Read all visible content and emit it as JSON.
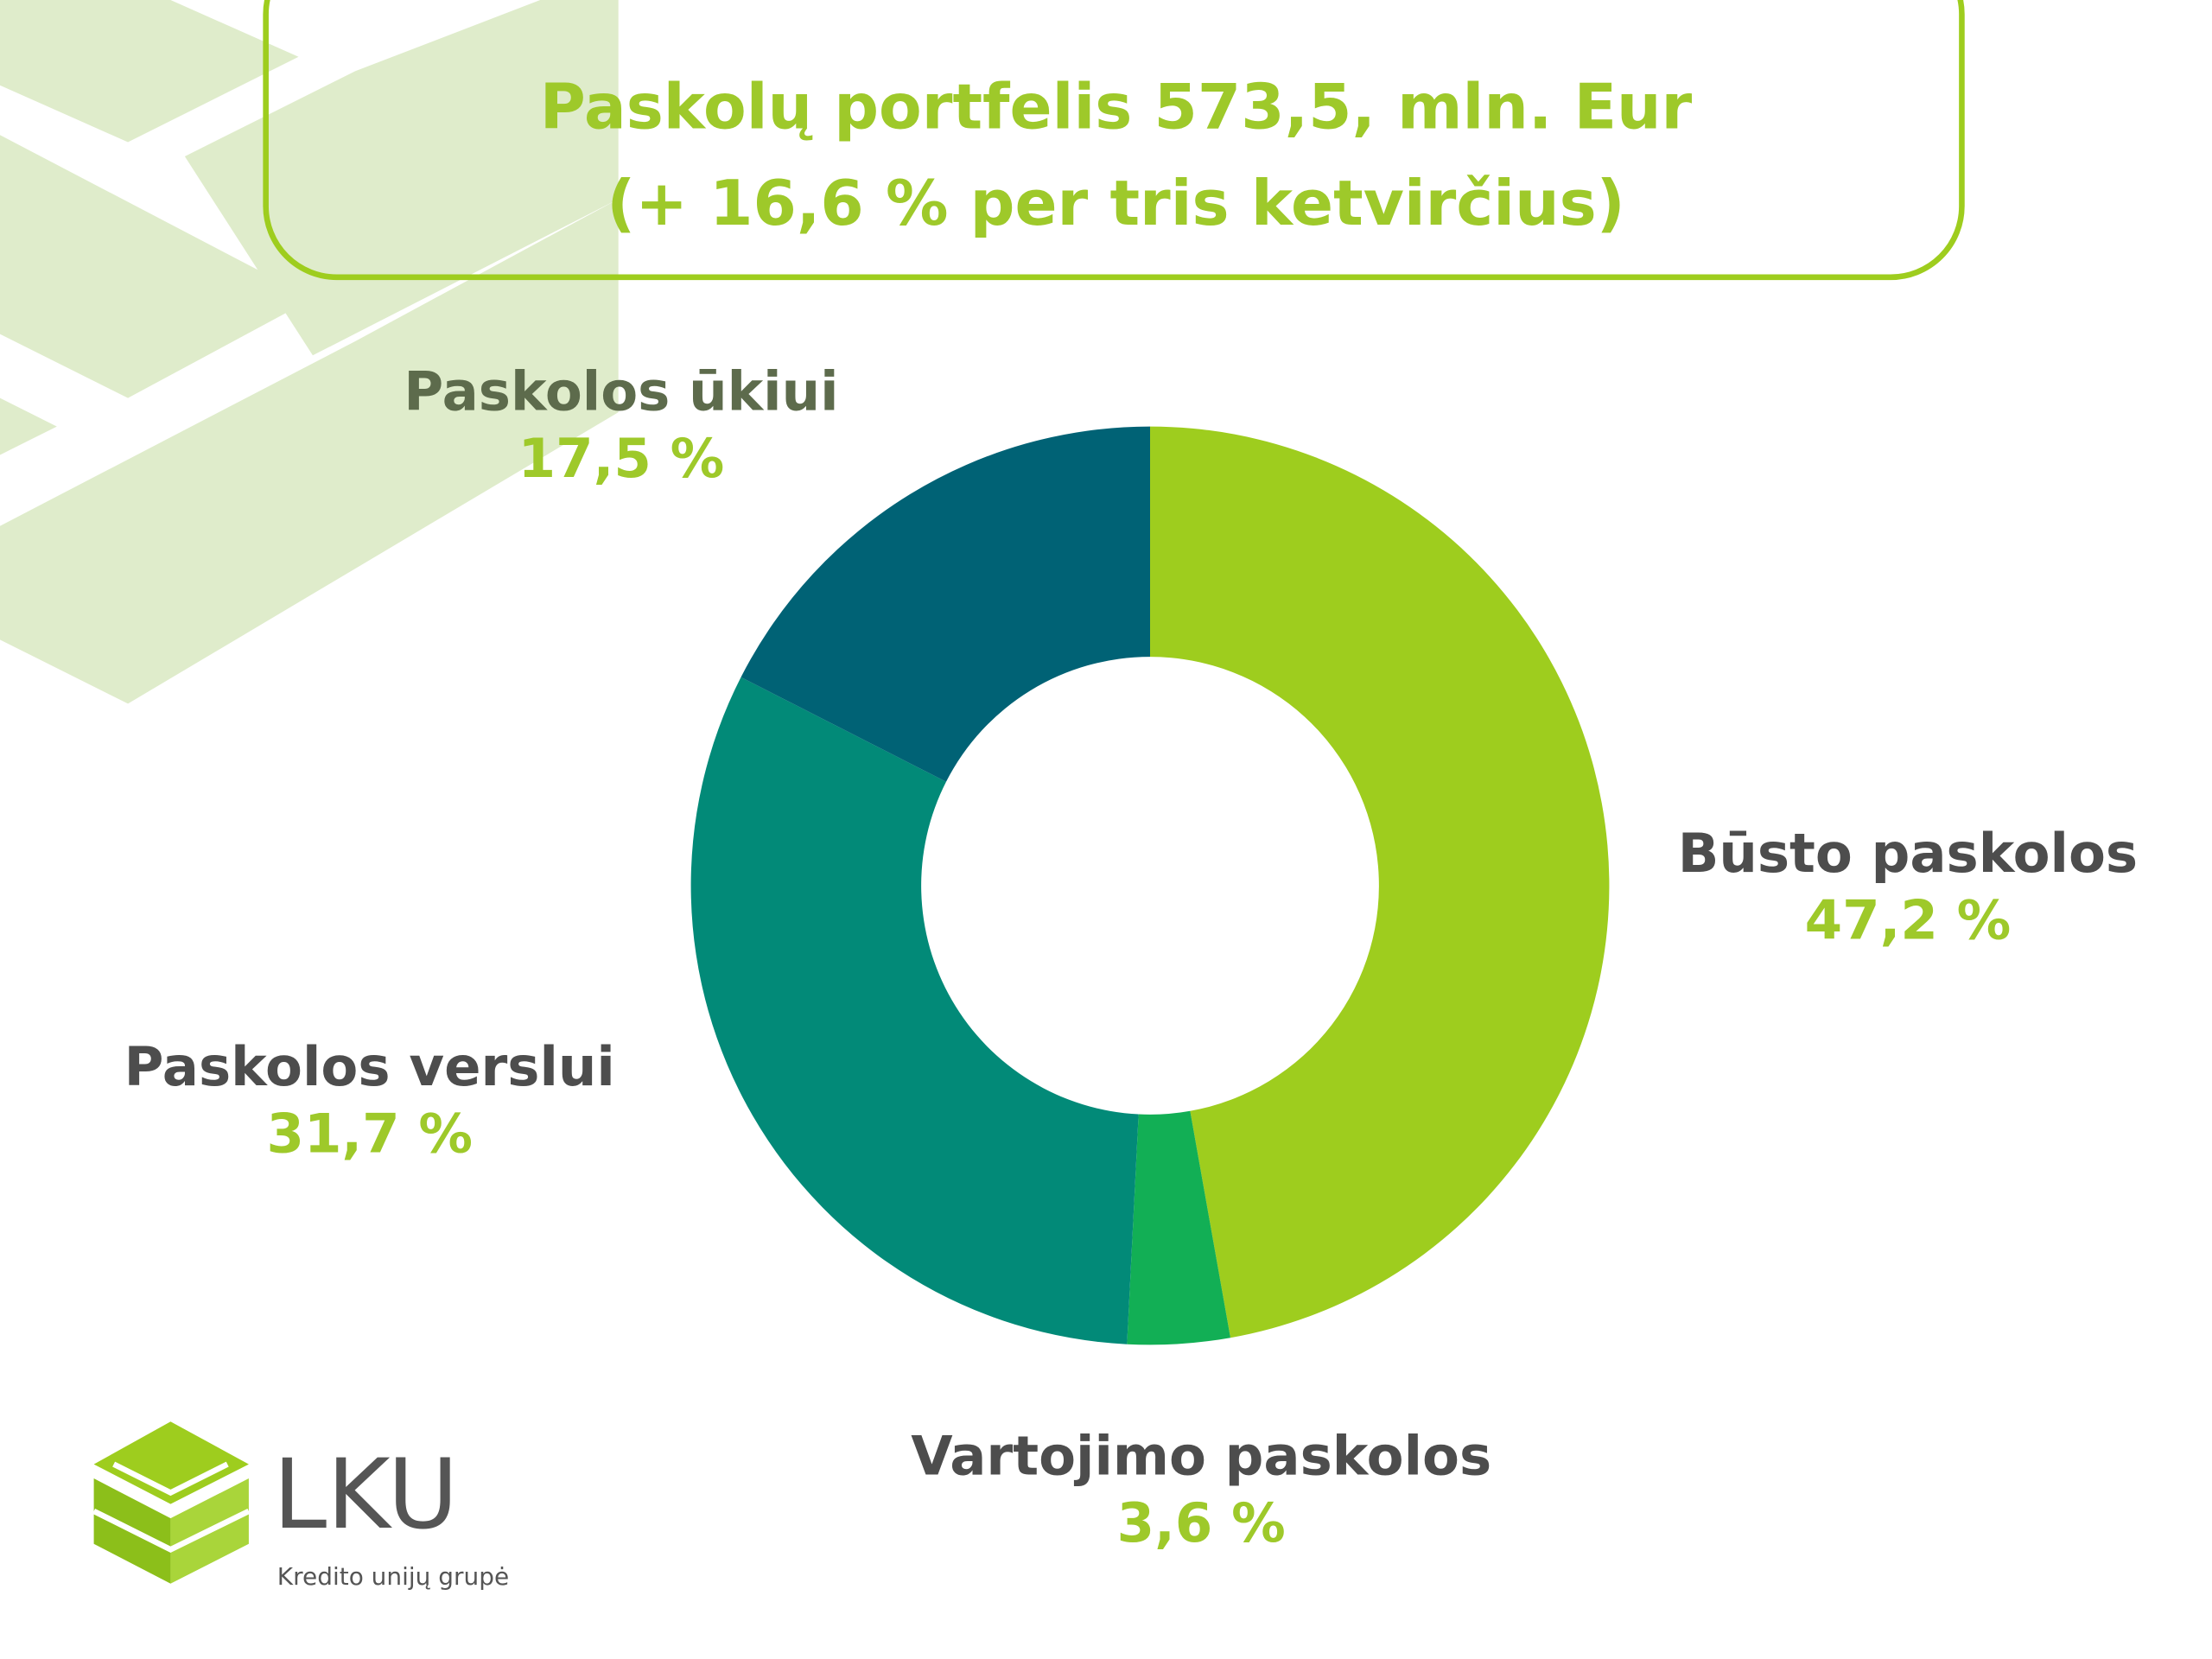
{
  "chart_data": {
    "type": "donut",
    "title": "Paskolų portfelis 573,5, mln. Eur",
    "subtitle": "(+ 16,6 % per tris ketvirčius)",
    "categories": [
      "Būsto paskolos",
      "Vartojimo paskolos",
      "Paskolos verslui",
      "Paskolos ūkiui"
    ],
    "values": [
      47.2,
      3.6,
      31.7,
      17.5
    ],
    "value_labels": [
      "47,2 %",
      "3,6 %",
      "31,7 %",
      "17,5 %"
    ],
    "colors": [
      "#9ecd1e",
      "#12af55",
      "#028a78",
      "#006275"
    ]
  },
  "logo": {
    "text": "LKU",
    "tagline": "Kredito unijų grupė"
  }
}
